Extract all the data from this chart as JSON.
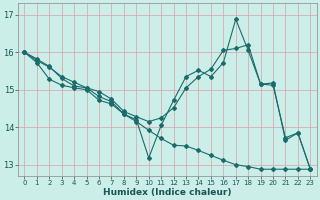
{
  "xlabel": "Humidex (Indice chaleur)",
  "xlim": [
    -0.5,
    23.5
  ],
  "ylim": [
    12.7,
    17.3
  ],
  "yticks": [
    13,
    14,
    15,
    16,
    17
  ],
  "xticks": [
    0,
    1,
    2,
    3,
    4,
    5,
    6,
    7,
    8,
    9,
    10,
    11,
    12,
    13,
    14,
    15,
    16,
    17,
    18,
    19,
    20,
    21,
    22,
    23
  ],
  "bg_color": "#cceee8",
  "line_color": "#1a6b6b",
  "grid_color": "#d9a0a8",
  "line1_x": [
    0,
    1,
    2,
    3,
    4,
    5,
    6,
    7,
    8,
    9,
    10,
    11,
    12,
    13,
    14,
    15,
    16,
    17,
    18,
    19,
    20,
    21,
    22,
    23
  ],
  "line1_y": [
    16.0,
    15.82,
    15.62,
    15.3,
    15.1,
    15.05,
    14.82,
    14.68,
    14.35,
    14.15,
    13.92,
    13.7,
    13.52,
    13.5,
    13.38,
    13.25,
    13.12,
    13.0,
    12.95,
    12.88,
    12.88,
    12.88,
    12.88,
    12.88
  ],
  "line2_x": [
    0,
    1,
    2,
    3,
    4,
    5,
    6,
    7,
    8,
    9,
    10,
    11,
    12,
    13,
    14,
    15,
    16,
    17,
    18,
    19,
    20,
    21,
    22,
    23
  ],
  "line2_y": [
    16.0,
    15.72,
    15.28,
    15.12,
    15.05,
    15.0,
    14.72,
    14.62,
    14.35,
    14.2,
    13.18,
    14.05,
    14.72,
    15.35,
    15.52,
    15.35,
    15.72,
    16.88,
    16.05,
    15.15,
    15.12,
    13.72,
    13.85,
    12.88
  ],
  "line3_x": [
    0,
    1,
    2,
    3,
    4,
    5,
    6,
    7,
    8,
    9,
    10,
    11,
    12,
    13,
    14,
    15,
    16,
    17,
    18,
    19,
    20,
    21,
    22,
    23
  ],
  "line3_y": [
    16.0,
    15.78,
    15.6,
    15.35,
    15.2,
    15.05,
    14.95,
    14.75,
    14.42,
    14.28,
    14.15,
    14.25,
    14.52,
    15.05,
    15.35,
    15.55,
    16.05,
    16.1,
    16.2,
    15.15,
    15.18,
    13.65,
    13.85,
    12.88
  ],
  "marker": "D",
  "markersize": 2.0,
  "linewidth": 0.8
}
